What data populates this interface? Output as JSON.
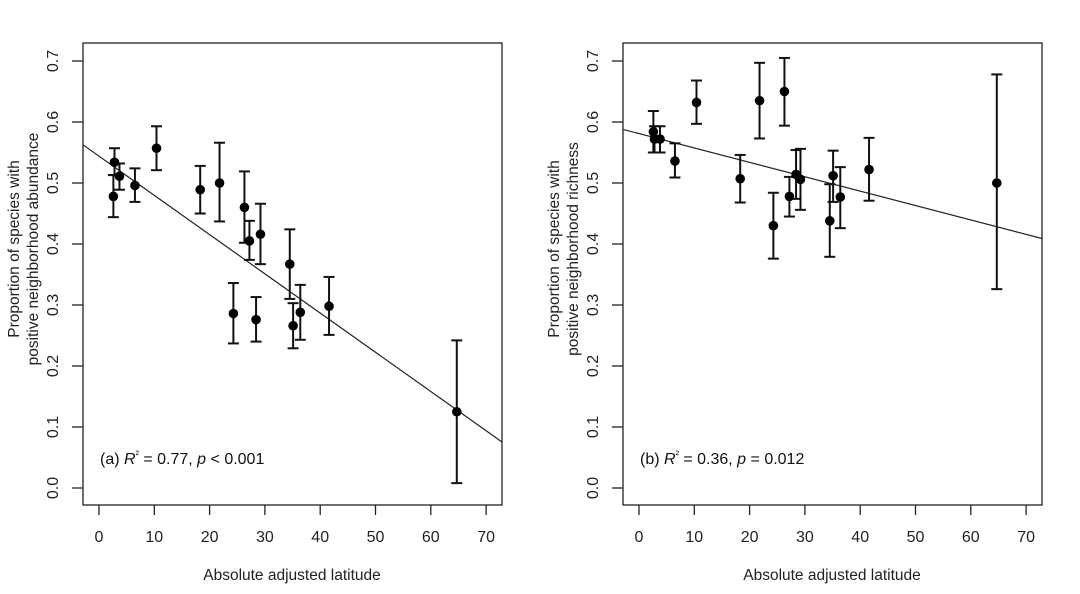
{
  "chart_data": [
    {
      "type": "scatter",
      "panel": "a",
      "xlabel": "Absolute adjusted latitude",
      "ylabel_lines": [
        "Proportion of species with",
        "positive neighborhood abundance"
      ],
      "xlim": [
        -3,
        73
      ],
      "ylim": [
        -0.03,
        0.73
      ],
      "xticks": [
        0,
        10,
        20,
        30,
        40,
        50,
        60,
        70
      ],
      "xtick_labels": [
        "0",
        "10",
        "20",
        "30",
        "40",
        "50",
        "60",
        "70"
      ],
      "yticks": [
        0.0,
        0.1,
        0.2,
        0.3,
        0.4,
        0.5,
        0.6,
        0.7
      ],
      "ytick_labels": [
        "0.0",
        "0.1",
        "0.2",
        "0.3",
        "0.4",
        "0.5",
        "0.6",
        "0.7"
      ],
      "annotation": {
        "prefix": "(a) ",
        "r": "R",
        "sup": "²",
        "mid": " = 0.77, ",
        "p": "p",
        "suffix": " < 0.001"
      },
      "fit": {
        "intercept": 0.544,
        "slope": -0.00643
      },
      "points": [
        {
          "x": 2.8,
          "y": 0.534,
          "lo": 0.513,
          "hi": 0.557
        },
        {
          "x": 2.6,
          "y": 0.478,
          "lo": 0.444,
          "hi": 0.513
        },
        {
          "x": 3.7,
          "y": 0.511,
          "lo": 0.489,
          "hi": 0.532
        },
        {
          "x": 6.5,
          "y": 0.496,
          "lo": 0.469,
          "hi": 0.524
        },
        {
          "x": 10.4,
          "y": 0.557,
          "lo": 0.521,
          "hi": 0.593
        },
        {
          "x": 18.3,
          "y": 0.489,
          "lo": 0.45,
          "hi": 0.528
        },
        {
          "x": 21.8,
          "y": 0.5,
          "lo": 0.437,
          "hi": 0.566
        },
        {
          "x": 24.3,
          "y": 0.286,
          "lo": 0.237,
          "hi": 0.336
        },
        {
          "x": 26.3,
          "y": 0.46,
          "lo": 0.402,
          "hi": 0.519
        },
        {
          "x": 27.2,
          "y": 0.405,
          "lo": 0.374,
          "hi": 0.438
        },
        {
          "x": 28.4,
          "y": 0.276,
          "lo": 0.24,
          "hi": 0.313
        },
        {
          "x": 29.2,
          "y": 0.416,
          "lo": 0.367,
          "hi": 0.466
        },
        {
          "x": 34.5,
          "y": 0.367,
          "lo": 0.31,
          "hi": 0.424
        },
        {
          "x": 35.1,
          "y": 0.266,
          "lo": 0.229,
          "hi": 0.303
        },
        {
          "x": 36.4,
          "y": 0.288,
          "lo": 0.243,
          "hi": 0.333
        },
        {
          "x": 41.6,
          "y": 0.298,
          "lo": 0.251,
          "hi": 0.346
        },
        {
          "x": 64.7,
          "y": 0.125,
          "lo": 0.008,
          "hi": 0.242
        }
      ]
    },
    {
      "type": "scatter",
      "panel": "b",
      "xlabel": "Absolute adjusted latitude",
      "ylabel_lines": [
        "Proportion of species with",
        "positive neighborhood richness"
      ],
      "xlim": [
        -3,
        73
      ],
      "ylim": [
        -0.03,
        0.73
      ],
      "xticks": [
        0,
        10,
        20,
        30,
        40,
        50,
        60,
        70
      ],
      "xtick_labels": [
        "0",
        "10",
        "20",
        "30",
        "40",
        "50",
        "60",
        "70"
      ],
      "yticks": [
        0.0,
        0.1,
        0.2,
        0.3,
        0.4,
        0.5,
        0.6,
        0.7
      ],
      "ytick_labels": [
        "0.0",
        "0.1",
        "0.2",
        "0.3",
        "0.4",
        "0.5",
        "0.6",
        "0.7"
      ],
      "annotation": {
        "prefix": "(b) ",
        "r": "R",
        "sup": "²",
        "mid": " = 0.36, ",
        "p": "p",
        "suffix": " = 0.012"
      },
      "fit": {
        "intercept": 0.581,
        "slope": -0.00236
      },
      "points": [
        {
          "x": 2.6,
          "y": 0.584,
          "lo": 0.55,
          "hi": 0.618
        },
        {
          "x": 2.8,
          "y": 0.572,
          "lo": 0.55,
          "hi": 0.593
        },
        {
          "x": 3.8,
          "y": 0.572,
          "lo": 0.55,
          "hi": 0.593
        },
        {
          "x": 6.5,
          "y": 0.536,
          "lo": 0.509,
          "hi": 0.565
        },
        {
          "x": 10.4,
          "y": 0.632,
          "lo": 0.597,
          "hi": 0.668
        },
        {
          "x": 18.3,
          "y": 0.507,
          "lo": 0.468,
          "hi": 0.546
        },
        {
          "x": 21.8,
          "y": 0.635,
          "lo": 0.573,
          "hi": 0.697
        },
        {
          "x": 24.3,
          "y": 0.43,
          "lo": 0.376,
          "hi": 0.484
        },
        {
          "x": 26.3,
          "y": 0.65,
          "lo": 0.594,
          "hi": 0.705
        },
        {
          "x": 27.2,
          "y": 0.478,
          "lo": 0.445,
          "hi": 0.51
        },
        {
          "x": 28.4,
          "y": 0.514,
          "lo": 0.474,
          "hi": 0.554
        },
        {
          "x": 29.2,
          "y": 0.506,
          "lo": 0.456,
          "hi": 0.556
        },
        {
          "x": 34.5,
          "y": 0.438,
          "lo": 0.379,
          "hi": 0.498
        },
        {
          "x": 35.1,
          "y": 0.512,
          "lo": 0.469,
          "hi": 0.553
        },
        {
          "x": 36.4,
          "y": 0.477,
          "lo": 0.426,
          "hi": 0.526
        },
        {
          "x": 41.6,
          "y": 0.522,
          "lo": 0.471,
          "hi": 0.574
        },
        {
          "x": 64.7,
          "y": 0.5,
          "lo": 0.326,
          "hi": 0.678
        }
      ]
    }
  ]
}
